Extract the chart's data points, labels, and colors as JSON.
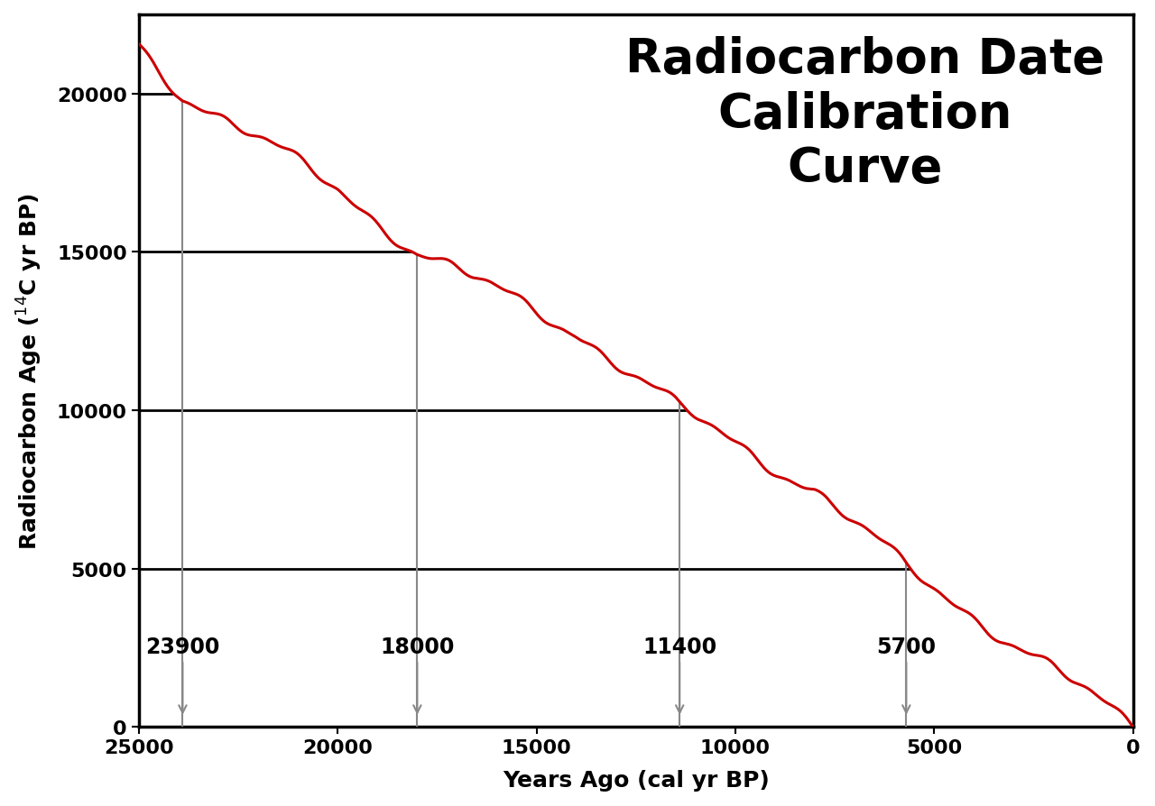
{
  "title": "Radiocarbon Date\nCalibration\nCurve",
  "xlabel": "Years Ago (cal yr BP)",
  "ylabel": "Radiocarbon Age ($^{14}$C yr BP)",
  "xlim_left": 25000,
  "xlim_right": 0,
  "ylim_bottom": 0,
  "ylim_top": 22500,
  "xticks": [
    25000,
    20000,
    15000,
    10000,
    5000,
    0
  ],
  "yticks": [
    0,
    5000,
    10000,
    15000,
    20000
  ],
  "curve_color": "#cc0000",
  "vline_color": "#888888",
  "hline_color": "#000000",
  "vline_positions": [
    23900,
    18000,
    11400,
    5700
  ],
  "vline_labels": [
    "23900",
    "18000",
    "11400",
    "5700"
  ],
  "hline_y_values": [
    20000,
    15000,
    10000,
    5000
  ],
  "background_color": "#ffffff",
  "title_fontsize": 38,
  "axis_label_fontsize": 18,
  "tick_fontsize": 16,
  "annotation_fontsize": 17,
  "curve_linewidth": 2.2,
  "hline_linewidth": 2.0,
  "vline_linewidth": 1.5,
  "spine_linewidth": 2.5,
  "anchors_cal": [
    0,
    2000,
    5700,
    8000,
    11400,
    14000,
    18000,
    20000,
    23900,
    25000
  ],
  "anchors_14c": [
    0,
    1800,
    5000,
    7500,
    10000,
    12500,
    15000,
    17000,
    20000,
    21500
  ]
}
